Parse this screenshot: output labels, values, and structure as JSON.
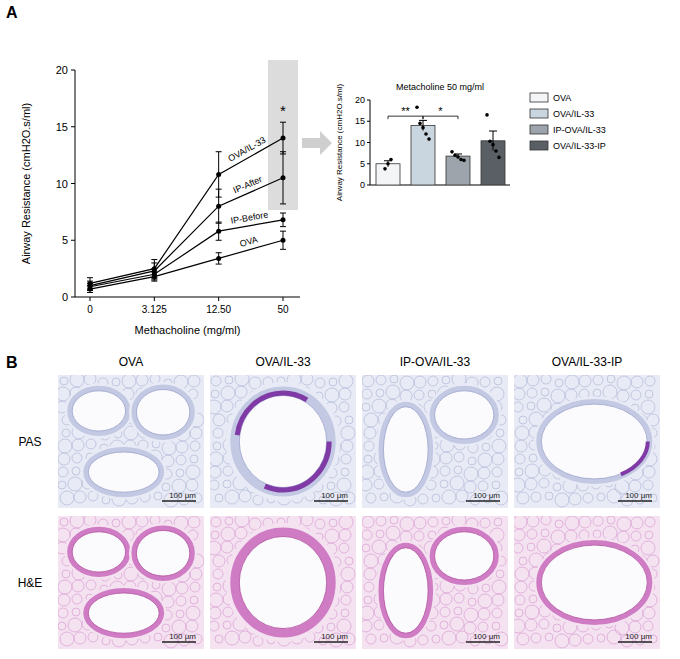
{
  "panel_labels": [
    "A",
    "B"
  ],
  "chart_data": [
    {
      "type": "line",
      "x_label": "Methacholine (mg/ml)",
      "y_label": "Airway Resistance (cmH2O.s/ml)",
      "categories": [
        "0",
        "3.125",
        "12.50",
        "50"
      ],
      "series": [
        {
          "name": "OVA/IL-33",
          "color": "#000000",
          "marker": "circle",
          "values": [
            1.2,
            2.5,
            10.8,
            14.0
          ],
          "errors": [
            0.5,
            0.8,
            2.0,
            1.4
          ]
        },
        {
          "name": "IP-After",
          "color": "#000000",
          "marker": "circle",
          "values": [
            1.0,
            2.3,
            8.0,
            10.5
          ],
          "errors": [
            0.4,
            0.7,
            1.5,
            2.3
          ]
        },
        {
          "name": "IP-Before",
          "color": "#000000",
          "marker": "circle",
          "values": [
            0.9,
            2.0,
            5.8,
            6.8
          ],
          "errors": [
            0.3,
            0.5,
            0.8,
            0.6
          ]
        },
        {
          "name": "OVA",
          "color": "#000000",
          "marker": "circle",
          "values": [
            0.7,
            1.8,
            3.4,
            5.0
          ],
          "errors": [
            0.3,
            0.4,
            0.5,
            0.8
          ]
        }
      ],
      "ylim": [
        0,
        20
      ],
      "yticks": [
        0,
        5,
        10,
        15,
        20
      ],
      "grid": false,
      "annotations": [
        {
          "text": "*",
          "x": "50"
        }
      ]
    },
    {
      "type": "bar",
      "title": "Metacholine 50 mg/ml",
      "y_label": "Airway Resistance (cmH2O.s/ml)",
      "categories": [
        "OVA",
        "OVA/IL-33",
        "IP-OVA/IL-33",
        "OVA/IL-33-IP"
      ],
      "values": [
        5.0,
        14.0,
        6.8,
        10.4
      ],
      "errors": [
        0.7,
        1.2,
        0.5,
        2.3
      ],
      "points": [
        [
          3.8,
          5.0,
          6.0
        ],
        [
          18.3,
          14.5,
          13.5,
          12.0,
          10.8
        ],
        [
          7.8,
          7.0,
          6.6,
          6.0,
          5.8
        ],
        [
          16.5,
          10.3,
          9.5,
          8.0,
          6.5
        ]
      ],
      "colors": [
        "#f3f5f7",
        "#c9d5df",
        "#9da4ab",
        "#5a5f66"
      ],
      "ylim": [
        0,
        20
      ],
      "yticks": [
        0,
        5,
        10,
        15,
        20
      ],
      "grid": false,
      "tick_labels": "y",
      "legend": "right",
      "annotations": [
        {
          "text": "**",
          "between": [
            "OVA",
            "OVA/IL-33"
          ]
        },
        {
          "text": "*",
          "between": [
            "OVA/IL-33",
            "IP-OVA/IL-33"
          ]
        }
      ]
    }
  ],
  "histology": {
    "columns": [
      "OVA",
      "OVA/IL-33",
      "IP-OVA/IL-33",
      "OVA/IL-33-IP"
    ],
    "rows": [
      "PAS",
      "H&E"
    ],
    "scale_bar": "100 μm"
  }
}
